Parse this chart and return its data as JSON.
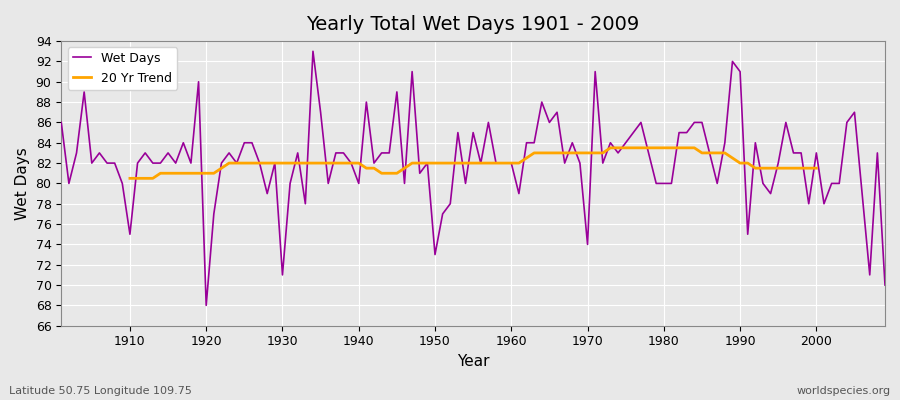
{
  "title": "Yearly Total Wet Days 1901 - 2009",
  "xlabel": "Year",
  "ylabel": "Wet Days",
  "subtitle_left": "Latitude 50.75 Longitude 109.75",
  "subtitle_right": "worldspecies.org",
  "legend_wet": "Wet Days",
  "legend_trend": "20 Yr Trend",
  "ylim": [
    66,
    94
  ],
  "xlim": [
    1901,
    2009
  ],
  "yticks": [
    66,
    68,
    70,
    72,
    74,
    76,
    78,
    80,
    82,
    84,
    86,
    88,
    90,
    92,
    94
  ],
  "xticks": [
    1910,
    1920,
    1930,
    1940,
    1950,
    1960,
    1970,
    1980,
    1990,
    2000
  ],
  "wet_color": "#990099",
  "trend_color": "#FFA500",
  "background_color": "#e8e8e8",
  "grid_color": "#ffffff",
  "years": [
    1901,
    1902,
    1903,
    1904,
    1905,
    1906,
    1907,
    1908,
    1909,
    1910,
    1911,
    1912,
    1913,
    1914,
    1915,
    1916,
    1917,
    1918,
    1919,
    1920,
    1921,
    1922,
    1923,
    1924,
    1925,
    1926,
    1927,
    1928,
    1929,
    1930,
    1931,
    1932,
    1933,
    1934,
    1935,
    1936,
    1937,
    1938,
    1939,
    1940,
    1941,
    1942,
    1943,
    1944,
    1945,
    1946,
    1947,
    1948,
    1949,
    1950,
    1951,
    1952,
    1953,
    1954,
    1955,
    1956,
    1957,
    1958,
    1959,
    1960,
    1961,
    1962,
    1963,
    1964,
    1965,
    1966,
    1967,
    1968,
    1969,
    1970,
    1971,
    1972,
    1973,
    1974,
    1975,
    1976,
    1977,
    1978,
    1979,
    1980,
    1981,
    1982,
    1983,
    1984,
    1985,
    1986,
    1987,
    1988,
    1989,
    1990,
    1991,
    1992,
    1993,
    1994,
    1995,
    1996,
    1997,
    1998,
    1999,
    2000,
    2001,
    2002,
    2003,
    2004,
    2005,
    2006,
    2007,
    2008,
    2009
  ],
  "wet_days": [
    86,
    80,
    83,
    89,
    82,
    83,
    82,
    82,
    80,
    75,
    82,
    83,
    82,
    82,
    83,
    82,
    84,
    82,
    90,
    68,
    77,
    82,
    83,
    82,
    84,
    84,
    82,
    79,
    82,
    71,
    80,
    83,
    78,
    93,
    87,
    80,
    83,
    83,
    82,
    80,
    88,
    82,
    83,
    83,
    89,
    80,
    91,
    81,
    82,
    73,
    77,
    78,
    85,
    80,
    85,
    82,
    86,
    82,
    82,
    82,
    79,
    84,
    84,
    88,
    86,
    87,
    82,
    84,
    82,
    74,
    91,
    82,
    84,
    83,
    84,
    85,
    86,
    83,
    80,
    80,
    80,
    85,
    85,
    86,
    86,
    83,
    80,
    84,
    92,
    91,
    75,
    84,
    80,
    79,
    82,
    86,
    83,
    83,
    78,
    83,
    78,
    80,
    80,
    86,
    87,
    79,
    71,
    83,
    70
  ],
  "trend_years": [
    1910,
    1911,
    1912,
    1913,
    1914,
    1915,
    1916,
    1917,
    1918,
    1919,
    1920,
    1921,
    1922,
    1923,
    1924,
    1925,
    1926,
    1927,
    1928,
    1929,
    1930,
    1931,
    1932,
    1933,
    1934,
    1935,
    1936,
    1937,
    1938,
    1939,
    1940,
    1941,
    1942,
    1943,
    1944,
    1945,
    1946,
    1947,
    1948,
    1949,
    1950,
    1951,
    1952,
    1953,
    1954,
    1955,
    1956,
    1957,
    1958,
    1959,
    1960,
    1961,
    1962,
    1963,
    1964,
    1965,
    1966,
    1967,
    1968,
    1969,
    1970,
    1971,
    1972,
    1973,
    1974,
    1975,
    1976,
    1977,
    1978,
    1979,
    1980,
    1981,
    1982,
    1983,
    1984,
    1985,
    1986,
    1987,
    1988,
    1989,
    1990,
    1991,
    1992,
    1993,
    1994,
    1995,
    1996,
    1997,
    1998,
    1999,
    2000
  ],
  "trend_vals": [
    80.5,
    80.5,
    80.5,
    80.5,
    81.0,
    81.0,
    81.0,
    81.0,
    81.0,
    81.0,
    81.0,
    81.0,
    81.5,
    82.0,
    82.0,
    82.0,
    82.0,
    82.0,
    82.0,
    82.0,
    82.0,
    82.0,
    82.0,
    82.0,
    82.0,
    82.0,
    82.0,
    82.0,
    82.0,
    82.0,
    82.0,
    81.5,
    81.5,
    81.0,
    81.0,
    81.0,
    81.5,
    82.0,
    82.0,
    82.0,
    82.0,
    82.0,
    82.0,
    82.0,
    82.0,
    82.0,
    82.0,
    82.0,
    82.0,
    82.0,
    82.0,
    82.0,
    82.5,
    83.0,
    83.0,
    83.0,
    83.0,
    83.0,
    83.0,
    83.0,
    83.0,
    83.0,
    83.0,
    83.5,
    83.5,
    83.5,
    83.5,
    83.5,
    83.5,
    83.5,
    83.5,
    83.5,
    83.5,
    83.5,
    83.5,
    83.0,
    83.0,
    83.0,
    83.0,
    82.5,
    82.0,
    82.0,
    81.5,
    81.5,
    81.5,
    81.5,
    81.5,
    81.5,
    81.5,
    81.5,
    81.5
  ]
}
